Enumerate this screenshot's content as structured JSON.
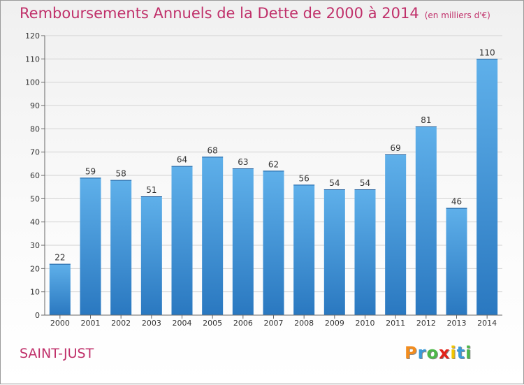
{
  "title": {
    "main": "Remboursements Annuels de la Dette de 2000 à 2014",
    "unit": "(en milliers d'€)"
  },
  "commune": "SAINT-JUST",
  "logo": {
    "letters": [
      {
        "ch": "P",
        "color": "#f28c1e"
      },
      {
        "ch": "r",
        "color": "#3a9ad9"
      },
      {
        "ch": "o",
        "color": "#4db848"
      },
      {
        "ch": "x",
        "color": "#e2231a"
      },
      {
        "ch": "i",
        "color": "#f2c500"
      },
      {
        "ch": "t",
        "color": "#3a9ad9"
      },
      {
        "ch": "i",
        "color": "#4db848"
      }
    ]
  },
  "colors": {
    "bar_top": "#5fb0ea",
    "bar_bottom": "#2a78c0",
    "title": "#c0306a"
  },
  "chart_data": {
    "type": "bar",
    "categories": [
      "2000",
      "2001",
      "2002",
      "2003",
      "2004",
      "2005",
      "2006",
      "2007",
      "2008",
      "2009",
      "2010",
      "2011",
      "2012",
      "2013",
      "2014"
    ],
    "values": [
      22,
      59,
      58,
      51,
      64,
      68,
      63,
      62,
      56,
      54,
      54,
      69,
      81,
      46,
      110
    ],
    "ylim": [
      0,
      120
    ],
    "yticks": [
      0,
      10,
      20,
      30,
      40,
      50,
      60,
      70,
      80,
      90,
      100,
      110,
      120
    ],
    "grid": true,
    "legend": "none"
  }
}
